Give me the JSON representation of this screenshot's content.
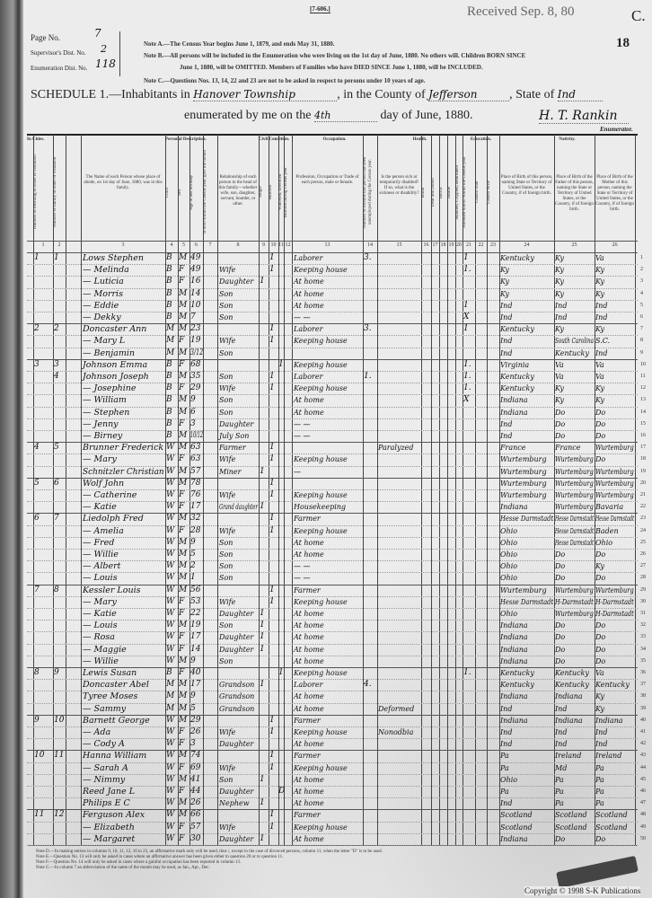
{
  "form_code": "[7-606.]",
  "received_stamp": "Received Sep. 8, 80",
  "corner_letter": "C.",
  "sheet_number": "18",
  "page_no_label": "Page No.",
  "page_no": "7",
  "supervisor_label": "Supervisor's Dist. No.",
  "supervisor_no": "2",
  "enumeration_label": "Enumeration Dist. No.",
  "enumeration_no": "118",
  "notes_top": [
    "Note A.—The Census Year begins June 1, 1879, and ends May 31, 1880.",
    "Note B.—All persons will be included in the Enumeration who were living on the 1st day of June, 1880. No others will. Children BORN SINCE",
    "June 1, 1880, will be OMITTED. Members of Families who have DIED SINCE June 1, 1880, will be INCLUDED.",
    "Note C.—Questions Nos. 13, 14, 22 and 23 are not to be asked in respect to persons under 10 years of age."
  ],
  "schedule": {
    "prefix": "SCHEDULE 1.—Inhabitants in",
    "township": "Hanover Township",
    "county_label": ", in the County of",
    "county": "Jefferson",
    "state_label": ", State of",
    "state": "Ind",
    "enum_prefix": "enumerated by me on the",
    "enum_day": "4th",
    "enum_suffix": "day of June, 1880.",
    "enumerator_signature": "H. T. Rankin",
    "enumerator_label": "Enumerator."
  },
  "group_headers": {
    "in_cities": "In Cities.",
    "personal": "Personal Description.",
    "civil": "Civil Condition.",
    "occupation": "Occupation.",
    "health": "Health.",
    "education": "Education.",
    "nativity": "Nativity."
  },
  "column_headers": [
    {
      "n": "1",
      "t": "Number of dwelling in order of visitation"
    },
    {
      "n": "2",
      "t": "Number of family in order of visitation"
    },
    {
      "n": "3",
      "t": "The Name of each Person whose place of abode, on 1st day of June, 1880, was in this family."
    },
    {
      "n": "4",
      "t": "Color"
    },
    {
      "n": "5",
      "t": "Sex"
    },
    {
      "n": "6",
      "t": "Age at last birthday"
    },
    {
      "n": "7",
      "t": "If born within the Census year, give the month"
    },
    {
      "n": "8",
      "t": "Relationship of each person to the head of this family—whether wife, son, daughter, servant, boarder, or other."
    },
    {
      "n": "9",
      "t": "Single"
    },
    {
      "n": "10",
      "t": "Married"
    },
    {
      "n": "11",
      "t": "Widowed, Divorced"
    },
    {
      "n": "12",
      "t": "Married during Census year"
    },
    {
      "n": "13",
      "t": "Profession, Occupation or Trade of each person, male or female."
    },
    {
      "n": "14",
      "t": "Number of months this person has been unemployed during the Census year."
    },
    {
      "n": "15",
      "t": "Is the person sick or temporarily disabled? If so, what is the sickness or disability?"
    },
    {
      "n": "16",
      "t": "Blind"
    },
    {
      "n": "17",
      "t": "Deaf and Dumb"
    },
    {
      "n": "18",
      "t": "Idiotic"
    },
    {
      "n": "19",
      "t": "Insane"
    },
    {
      "n": "20",
      "t": "Maimed, Crippled, Bedridden"
    },
    {
      "n": "21",
      "t": "Attended school within the Census year"
    },
    {
      "n": "22",
      "t": "Cannot read"
    },
    {
      "n": "23",
      "t": "Cannot write"
    },
    {
      "n": "24",
      "t": "Place of Birth of this person, naming State or Territory of United States, or the Country, if of foreign birth."
    },
    {
      "n": "25",
      "t": "Place of Birth of the Father of this person, naming the State or Territory of United States, or the Country, if of foreign birth."
    },
    {
      "n": "26",
      "t": "Place of Birth of the Mother of this person, naming the State or Territory of United States, or the Country, if of foreign birth."
    }
  ],
  "rows": [
    {
      "d": "1",
      "f": "1",
      "name": "Lows Stephen",
      "c": "B",
      "s": "M",
      "a": "49",
      "rel": "",
      "civ": "m",
      "occ": "Laborer",
      "mo": "3.",
      "h": "",
      "sch": "1",
      "bp": "Kentucky",
      "fb": "Ky",
      "mb": "Va"
    },
    {
      "d": "",
      "f": "",
      "name": "— Melinda",
      "c": "B",
      "s": "F",
      "a": "49",
      "rel": "Wife",
      "civ": "m",
      "occ": "Keeping house",
      "mo": "",
      "h": "",
      "sch": "1.",
      "bp": "Ky",
      "fb": "Ky",
      "mb": "Ky"
    },
    {
      "d": "",
      "f": "",
      "name": "— Luticia",
      "c": "B",
      "s": "F",
      "a": "16",
      "rel": "Daughter",
      "civ": "s",
      "occ": "At home",
      "mo": "",
      "h": "",
      "sch": "",
      "bp": "Ky",
      "fb": "Ky",
      "mb": "Ky"
    },
    {
      "d": "",
      "f": "",
      "name": "— Morris",
      "c": "B",
      "s": "M",
      "a": "14",
      "rel": "Son",
      "civ": "",
      "occ": "At home",
      "mo": "",
      "h": "",
      "sch": "",
      "bp": "Ky",
      "fb": "Ky",
      "mb": "Ky"
    },
    {
      "d": "",
      "f": "",
      "name": "— Eddie",
      "c": "B",
      "s": "M",
      "a": "10",
      "rel": "Son",
      "civ": "",
      "occ": "At home",
      "mo": "",
      "h": "",
      "sch": "1",
      "bp": "Ind",
      "fb": "Ind",
      "mb": "Ind"
    },
    {
      "d": "",
      "f": "",
      "name": "— Dekky",
      "c": "B",
      "s": "M",
      "a": "7",
      "rel": "Son",
      "civ": "",
      "occ": "— —",
      "mo": "",
      "h": "",
      "sch": "X",
      "bp": "Ind",
      "fb": "Ind",
      "mb": "Ind"
    },
    {
      "d": "2",
      "f": "2",
      "name": "Doncaster Ann",
      "c": "M",
      "s": "M",
      "a": "23",
      "rel": "",
      "civ": "m",
      "occ": "Laborer",
      "mo": "3.",
      "h": "",
      "sch": "1",
      "bp": "Kentucky",
      "fb": "Ky",
      "mb": "Ky"
    },
    {
      "d": "",
      "f": "",
      "name": "— Mary L",
      "c": "M",
      "s": "F",
      "a": "19",
      "rel": "Wife",
      "civ": "m",
      "occ": "Keeping house",
      "mo": "",
      "h": "",
      "sch": "",
      "bp": "Ind",
      "fb": "South Carolina",
      "mb": "S.C."
    },
    {
      "d": "",
      "f": "",
      "name": "— Benjamin",
      "c": "M",
      "s": "M",
      "a": "3/12",
      "rel": "Son",
      "civ": "",
      "occ": "",
      "mo": "",
      "h": "",
      "sch": "",
      "bp": "Ind",
      "fb": "Kentucky",
      "mb": "Ind"
    },
    {
      "d": "3",
      "f": "3",
      "name": "Johnson Emma",
      "c": "B",
      "s": "F",
      "a": "68",
      "rel": "",
      "civ": "w",
      "occ": "Keeping house",
      "mo": "",
      "h": "",
      "sch": "1.",
      "bp": "Virginia",
      "fb": "Va",
      "mb": "Va"
    },
    {
      "d": "",
      "f": "4",
      "name": "Johnson Joseph",
      "c": "B",
      "s": "M",
      "a": "35",
      "rel": "Son",
      "civ": "m",
      "occ": "Laborer",
      "mo": "1.",
      "h": "",
      "sch": "1.",
      "bp": "Kentucky",
      "fb": "Va",
      "mb": "Va"
    },
    {
      "d": "",
      "f": "",
      "name": "— Josephine",
      "c": "B",
      "s": "F",
      "a": "29",
      "rel": "Wife",
      "civ": "m",
      "occ": "Keeping house",
      "mo": "",
      "h": "",
      "sch": "1.",
      "bp": "Kentucky",
      "fb": "Ky",
      "mb": "Ky"
    },
    {
      "d": "",
      "f": "",
      "name": "— William",
      "c": "B",
      "s": "M",
      "a": "9",
      "rel": "Son",
      "civ": "",
      "occ": "At home",
      "mo": "",
      "h": "",
      "sch": "X",
      "bp": "Indiana",
      "fb": "Ky",
      "mb": "Ky"
    },
    {
      "d": "",
      "f": "",
      "name": "— Stephen",
      "c": "B",
      "s": "M",
      "a": "6",
      "rel": "Son",
      "civ": "",
      "occ": "At home",
      "mo": "",
      "h": "",
      "sch": "",
      "bp": "Indiana",
      "fb": "Do",
      "mb": "Do"
    },
    {
      "d": "",
      "f": "",
      "name": "— Jenny",
      "c": "B",
      "s": "F",
      "a": "3",
      "rel": "Daughter",
      "civ": "",
      "occ": "— —",
      "mo": "",
      "h": "",
      "sch": "",
      "bp": "Ind",
      "fb": "Do",
      "mb": "Do"
    },
    {
      "d": "",
      "f": "",
      "name": "— Birney",
      "c": "B",
      "s": "M",
      "a": "10/12",
      "rel": "July Son",
      "civ": "",
      "occ": "— —",
      "mo": "",
      "h": "",
      "sch": "",
      "bp": "Ind",
      "fb": "Do",
      "mb": "Do"
    },
    {
      "d": "4",
      "f": "5",
      "name": "Brunner Frederick",
      "c": "W",
      "s": "M",
      "a": "63",
      "rel": "Farmer",
      "civ": "m",
      "occ": "",
      "mo": "",
      "h": "Paralyzed",
      "sch": "",
      "bp": "France",
      "fb": "France",
      "mb": "Wurtemburg"
    },
    {
      "d": "",
      "f": "",
      "name": "— Mary",
      "c": "W",
      "s": "F",
      "a": "63",
      "rel": "Wife",
      "civ": "m",
      "occ": "Keeping house",
      "mo": "",
      "h": "",
      "sch": "",
      "bp": "Wurtemburg",
      "fb": "Wurtemburg",
      "mb": "Do"
    },
    {
      "d": "",
      "f": "",
      "name": "Schnitzler Christian",
      "c": "W",
      "s": "M",
      "a": "57",
      "rel": "Miner",
      "civ": "s",
      "occ": "—",
      "mo": "",
      "h": "",
      "sch": "",
      "bp": "Wurtemburg",
      "fb": "Wurtemburg",
      "mb": "Wurtemburg"
    },
    {
      "d": "5",
      "f": "6",
      "name": "Wolf John",
      "c": "W",
      "s": "M",
      "a": "78",
      "rel": "",
      "civ": "m",
      "occ": "",
      "mo": "",
      "h": "",
      "sch": "",
      "bp": "Wurtemburg",
      "fb": "Wurtemburg",
      "mb": "Wurtemburg"
    },
    {
      "d": "",
      "f": "",
      "name": "— Catherine",
      "c": "W",
      "s": "F",
      "a": "76",
      "rel": "Wife",
      "civ": "m",
      "occ": "Keeping house",
      "mo": "",
      "h": "",
      "sch": "",
      "bp": "Wurtemburg",
      "fb": "Wurtemburg",
      "mb": "Wurtemburg"
    },
    {
      "d": "",
      "f": "",
      "name": "— Katie",
      "c": "W",
      "s": "F",
      "a": "17",
      "rel": "Grand daughter",
      "civ": "s",
      "occ": "Housekeeping",
      "mo": "",
      "h": "",
      "sch": "",
      "bp": "Indiana",
      "fb": "Wurtemburg",
      "mb": "Bavaria"
    },
    {
      "d": "6",
      "f": "7",
      "name": "Liedolph Fred",
      "c": "W",
      "s": "M",
      "a": "32",
      "rel": "",
      "civ": "m",
      "occ": "Farmer",
      "mo": "",
      "h": "",
      "sch": "",
      "bp": "Hesse Darmstadt",
      "fb": "Hesse Darmstadt",
      "mb": "Hesse Darmstadt"
    },
    {
      "d": "",
      "f": "",
      "name": "— Amelia",
      "c": "W",
      "s": "F",
      "a": "28",
      "rel": "Wife",
      "civ": "m",
      "occ": "Keeping house",
      "mo": "",
      "h": "",
      "sch": "",
      "bp": "Ohio",
      "fb": "Hesse Darmstadt",
      "mb": "Baden"
    },
    {
      "d": "",
      "f": "",
      "name": "— Fred",
      "c": "W",
      "s": "M",
      "a": "9",
      "rel": "Son",
      "civ": "",
      "occ": "At home",
      "mo": "",
      "h": "",
      "sch": "",
      "bp": "Ohio",
      "fb": "Hesse Darmstadt",
      "mb": "Ohio"
    },
    {
      "d": "",
      "f": "",
      "name": "— Willie",
      "c": "W",
      "s": "M",
      "a": "5",
      "rel": "Son",
      "civ": "",
      "occ": "At home",
      "mo": "",
      "h": "",
      "sch": "",
      "bp": "Ohio",
      "fb": "Do",
      "mb": "Do"
    },
    {
      "d": "",
      "f": "",
      "name": "— Albert",
      "c": "W",
      "s": "M",
      "a": "2",
      "rel": "Son",
      "civ": "",
      "occ": "— —",
      "mo": "",
      "h": "",
      "sch": "",
      "bp": "Ohio",
      "fb": "Do",
      "mb": "Ky"
    },
    {
      "d": "",
      "f": "",
      "name": "— Louis",
      "c": "W",
      "s": "M",
      "a": "1",
      "rel": "Son",
      "civ": "",
      "occ": "— —",
      "mo": "",
      "h": "",
      "sch": "",
      "bp": "Ohio",
      "fb": "Do",
      "mb": "Do"
    },
    {
      "d": "7",
      "f": "8",
      "name": "Kessler Louis",
      "c": "W",
      "s": "M",
      "a": "56",
      "rel": "",
      "civ": "m",
      "occ": "Farmer",
      "mo": "",
      "h": "",
      "sch": "",
      "bp": "Wurtemburg",
      "fb": "Wurtemburg",
      "mb": "Wurtemburg"
    },
    {
      "d": "",
      "f": "",
      "name": "— Mary",
      "c": "W",
      "s": "F",
      "a": "53",
      "rel": "Wife",
      "civ": "m",
      "occ": "Keeping house",
      "mo": "",
      "h": "",
      "sch": "",
      "bp": "Hesse Darmstadt",
      "fb": "H-Darmstadt",
      "mb": "H-Darmstadt"
    },
    {
      "d": "",
      "f": "",
      "name": "— Katie",
      "c": "W",
      "s": "F",
      "a": "22",
      "rel": "Daughter",
      "civ": "s",
      "occ": "At home",
      "mo": "",
      "h": "",
      "sch": "",
      "bp": "Ohio",
      "fb": "Wurtemburg",
      "mb": "H-Darmstadt"
    },
    {
      "d": "",
      "f": "",
      "name": "— Louis",
      "c": "W",
      "s": "M",
      "a": "19",
      "rel": "Son",
      "civ": "s",
      "occ": "At home",
      "mo": "",
      "h": "",
      "sch": "",
      "bp": "Indiana",
      "fb": "Do",
      "mb": "Do"
    },
    {
      "d": "",
      "f": "",
      "name": "— Rosa",
      "c": "W",
      "s": "F",
      "a": "17",
      "rel": "Daughter",
      "civ": "s",
      "occ": "At home",
      "mo": "",
      "h": "",
      "sch": "",
      "bp": "Indiana",
      "fb": "Do",
      "mb": "Do"
    },
    {
      "d": "",
      "f": "",
      "name": "— Maggie",
      "c": "W",
      "s": "F",
      "a": "14",
      "rel": "Daughter",
      "civ": "s",
      "occ": "At home",
      "mo": "",
      "h": "",
      "sch": "",
      "bp": "Indiana",
      "fb": "Do",
      "mb": "Do"
    },
    {
      "d": "",
      "f": "",
      "name": "— Willie",
      "c": "W",
      "s": "M",
      "a": "9",
      "rel": "Son",
      "civ": "",
      "occ": "At home",
      "mo": "",
      "h": "",
      "sch": "",
      "bp": "Indiana",
      "fb": "Do",
      "mb": "Do"
    },
    {
      "d": "8",
      "f": "9",
      "name": "Lewis Susan",
      "c": "B",
      "s": "F",
      "a": "40",
      "rel": "",
      "civ": "w",
      "occ": "Keeping house",
      "mo": "",
      "h": "",
      "sch": "1.",
      "bp": "Kentucky",
      "fb": "Kentucky",
      "mb": "Va"
    },
    {
      "d": "",
      "f": "",
      "name": "Doncaster Abel",
      "c": "M",
      "s": "M",
      "a": "17",
      "rel": "Grandson",
      "civ": "s",
      "occ": "Laborer",
      "mo": "4.",
      "h": "",
      "sch": "",
      "bp": "Kentucky",
      "fb": "Kentucky",
      "mb": "Kentucky"
    },
    {
      "d": "",
      "f": "",
      "name": "Tyree Moses",
      "c": "M",
      "s": "M",
      "a": "9",
      "rel": "Grandson",
      "civ": "",
      "occ": "At home",
      "mo": "",
      "h": "",
      "sch": "",
      "bp": "Indiana",
      "fb": "Indiana",
      "mb": "Ky"
    },
    {
      "d": "",
      "f": "",
      "name": "— Sammy",
      "c": "M",
      "s": "M",
      "a": "5",
      "rel": "Grandson",
      "civ": "",
      "occ": "At home",
      "mo": "",
      "h": "Deformed",
      "sch": "",
      "bp": "Ind",
      "fb": "Ind",
      "mb": "Ky"
    },
    {
      "d": "9",
      "f": "10",
      "name": "Barnett George",
      "c": "W",
      "s": "M",
      "a": "29",
      "rel": "",
      "civ": "m",
      "occ": "Farmer",
      "mo": "",
      "h": "",
      "sch": "",
      "bp": "Indiana",
      "fb": "Indiana",
      "mb": "Indiana"
    },
    {
      "d": "",
      "f": "",
      "name": "— Ada",
      "c": "W",
      "s": "F",
      "a": "26",
      "rel": "Wife",
      "civ": "m",
      "occ": "Keeping house",
      "mo": "",
      "h": "Nonodbia",
      "sch": "",
      "bp": "Ind",
      "fb": "Ind",
      "mb": "Ind"
    },
    {
      "d": "",
      "f": "",
      "name": "— Cody A",
      "c": "W",
      "s": "F",
      "a": "3",
      "rel": "Daughter",
      "civ": "",
      "occ": "At home",
      "mo": "",
      "h": "",
      "sch": "",
      "bp": "Ind",
      "fb": "Ind",
      "mb": "Ind"
    },
    {
      "d": "10",
      "f": "11",
      "name": "Hanna William",
      "c": "W",
      "s": "M",
      "a": "74",
      "rel": "",
      "civ": "m",
      "occ": "Farmer",
      "mo": "",
      "h": "",
      "sch": "",
      "bp": "Pa",
      "fb": "Ireland",
      "mb": "Ireland"
    },
    {
      "d": "",
      "f": "",
      "name": "— Sarah A",
      "c": "W",
      "s": "F",
      "a": "69",
      "rel": "Wife",
      "civ": "m",
      "occ": "Keeping house",
      "mo": "",
      "h": "",
      "sch": "",
      "bp": "Pa",
      "fb": "Md",
      "mb": "Pa"
    },
    {
      "d": "",
      "f": "",
      "name": "— Nimmy",
      "c": "W",
      "s": "M",
      "a": "41",
      "rel": "Son",
      "civ": "s",
      "occ": "At home",
      "mo": "",
      "h": "",
      "sch": "",
      "bp": "Ohio",
      "fb": "Pa",
      "mb": "Pa"
    },
    {
      "d": "",
      "f": "",
      "name": "Reed Jane L",
      "c": "W",
      "s": "F",
      "a": "44",
      "rel": "Daughter",
      "civ": "d",
      "occ": "At home",
      "mo": "",
      "h": "",
      "sch": "",
      "bp": "Pa",
      "fb": "Pa",
      "mb": "Pa"
    },
    {
      "d": "",
      "f": "",
      "name": "Philips E C",
      "c": "W",
      "s": "M",
      "a": "26",
      "rel": "Nephew",
      "civ": "s",
      "occ": "At home",
      "mo": "",
      "h": "",
      "sch": "",
      "bp": "Ind",
      "fb": "Pa",
      "mb": "Pa"
    },
    {
      "d": "11",
      "f": "12",
      "name": "Ferguson Alex",
      "c": "W",
      "s": "M",
      "a": "66",
      "rel": "",
      "civ": "m",
      "occ": "Farmer",
      "mo": "",
      "h": "",
      "sch": "",
      "bp": "Scotland",
      "fb": "Scotland",
      "mb": "Scotland"
    },
    {
      "d": "",
      "f": "",
      "name": "— Elizabeth",
      "c": "W",
      "s": "F",
      "a": "57",
      "rel": "Wife",
      "civ": "m",
      "occ": "Keeping house",
      "mo": "",
      "h": "",
      "sch": "",
      "bp": "Scotland",
      "fb": "Scotland",
      "mb": "Scotland"
    },
    {
      "d": "",
      "f": "",
      "name": "— Margaret",
      "c": "W",
      "s": "F",
      "a": "30",
      "rel": "Daughter",
      "civ": "s",
      "occ": "At home",
      "mo": "",
      "h": "",
      "sch": "",
      "bp": "Indiana",
      "fb": "Do",
      "mb": "Do"
    }
  ],
  "civil_mark": "1",
  "divorced_mark": "D",
  "notes_bottom": [
    "Note D.—In making entries in columns 9, 10, 11, 12, 16 to 23, an affirmative mark only will be used, thus /, except in the case of divorced persons, column 11, when the letter \"D\" is to be used.",
    "Note E.—Question No. 13 will only be asked in cases where an affirmative answer has been given either to question 20 or to question 11.",
    "Note F.—Question No. 14 will only be asked in cases where a gainful occupation has been reported in column 13.",
    "Note G.—In column 7 an abbreviation of the name of the month may be used, as Jan., Apr., Dec."
  ],
  "copyright": "Copyright © 1998 S-K Publications"
}
